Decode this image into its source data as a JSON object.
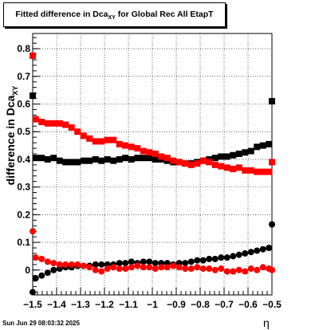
{
  "chart_data": {
    "type": "scatter",
    "title_main": "Fitted difference in Dca",
    "title_sub": "XY",
    "title_tail": " for Global Rec All EtapT",
    "xlabel": "η",
    "ylabel_main": "difference in Dca",
    "ylabel_sub": "XY",
    "xlim": [
      -1.5,
      -0.5
    ],
    "ylim": [
      -0.09,
      0.855
    ],
    "grid": true,
    "x_ticks": [
      -1.5,
      -1.4,
      -1.3,
      -1.2,
      -1.1,
      -1,
      -0.9,
      -0.8,
      -0.7,
      -0.6,
      -0.5
    ],
    "x_tick_labels": [
      "−1.5",
      "−1.4",
      "−1.3",
      "−1.2",
      "−1.1",
      "−1",
      "−0.9",
      "−0.8",
      "−0.7",
      "−0.6",
      "−0.5"
    ],
    "y_ticks": [
      0,
      0.1,
      0.2,
      0.3,
      0.4,
      0.5,
      0.6,
      0.7,
      0.8
    ],
    "y_tick_labels": [
      "0",
      "0.1",
      "0.2",
      "0.3",
      "0.4",
      "0.5",
      "0.6",
      "0.7",
      "0.8"
    ],
    "x": [
      -1.4875,
      -1.4625,
      -1.4375,
      -1.4125,
      -1.3875,
      -1.3625,
      -1.3375,
      -1.3125,
      -1.2875,
      -1.2625,
      -1.2375,
      -1.2125,
      -1.1875,
      -1.1625,
      -1.1375,
      -1.1125,
      -1.0875,
      -1.0625,
      -1.0375,
      -1.0125,
      -0.9875,
      -0.9625,
      -0.9375,
      -0.9125,
      -0.8875,
      -0.8625,
      -0.8375,
      -0.8125,
      -0.7875,
      -0.7625,
      -0.7375,
      -0.7125,
      -0.6875,
      -0.6625,
      -0.6375,
      -0.6125,
      -0.5875,
      -0.5625,
      -0.5375,
      -0.5125
    ],
    "series": [
      {
        "marker": "square",
        "color": "#000000",
        "edge_x": [
          -1.5,
          -0.5
        ],
        "edge_y": [
          0.63,
          0.61
        ],
        "values": [
          0.405,
          0.405,
          0.4,
          0.405,
          0.395,
          0.39,
          0.39,
          0.39,
          0.395,
          0.395,
          0.4,
          0.395,
          0.4,
          0.395,
          0.4,
          0.405,
          0.4,
          0.405,
          0.405,
          0.405,
          0.4,
          0.4,
          0.395,
          0.39,
          0.39,
          0.385,
          0.385,
          0.39,
          0.395,
          0.4,
          0.405,
          0.41,
          0.41,
          0.415,
          0.42,
          0.425,
          0.43,
          0.445,
          0.45,
          0.455
        ]
      },
      {
        "marker": "square",
        "color": "#ff0000",
        "edge_x": [
          -1.5,
          -0.5
        ],
        "edge_y": [
          0.775,
          0.39
        ],
        "values": [
          0.545,
          0.535,
          0.53,
          0.53,
          0.53,
          0.525,
          0.515,
          0.5,
          0.485,
          0.475,
          0.465,
          0.465,
          0.47,
          0.47,
          0.455,
          0.45,
          0.445,
          0.44,
          0.43,
          0.425,
          0.42,
          0.41,
          0.405,
          0.395,
          0.39,
          0.385,
          0.38,
          0.385,
          0.395,
          0.39,
          0.38,
          0.375,
          0.37,
          0.365,
          0.37,
          0.36,
          0.36,
          0.355,
          0.355,
          0.355
        ]
      },
      {
        "marker": "circle",
        "color": "#000000",
        "edge_x": [
          -1.5,
          -0.5
        ],
        "edge_y": [
          -0.08,
          0.165
        ],
        "values": [
          -0.03,
          -0.02,
          -0.01,
          0.0,
          0.005,
          0.01,
          0.01,
          0.015,
          0.015,
          0.015,
          0.02,
          0.02,
          0.02,
          0.02,
          0.025,
          0.025,
          0.03,
          0.025,
          0.03,
          0.03,
          0.025,
          0.025,
          0.025,
          0.02,
          0.025,
          0.025,
          0.03,
          0.035,
          0.035,
          0.04,
          0.04,
          0.045,
          0.045,
          0.05,
          0.055,
          0.06,
          0.065,
          0.07,
          0.075,
          0.08
        ]
      },
      {
        "marker": "circle",
        "color": "#ff0000",
        "edge_x": [
          -1.5,
          -0.5
        ],
        "edge_y": [
          0.14,
          0.0
        ],
        "values": [
          0.045,
          0.04,
          0.03,
          0.025,
          0.02,
          0.02,
          0.02,
          0.02,
          0.015,
          0.01,
          0.0,
          -0.005,
          0.005,
          0.01,
          0.005,
          0.005,
          0.01,
          0.015,
          0.01,
          0.01,
          0.005,
          0.01,
          0.01,
          0.015,
          0.01,
          0.005,
          0.005,
          0.01,
          0.005,
          0.005,
          0.0,
          0.005,
          -0.005,
          -0.005,
          0.0,
          -0.005,
          0.005,
          0.0,
          0.01,
          0.005
        ]
      }
    ]
  },
  "footer": {
    "timestamp": "Sun Jun 29 08:03:32 2025"
  }
}
